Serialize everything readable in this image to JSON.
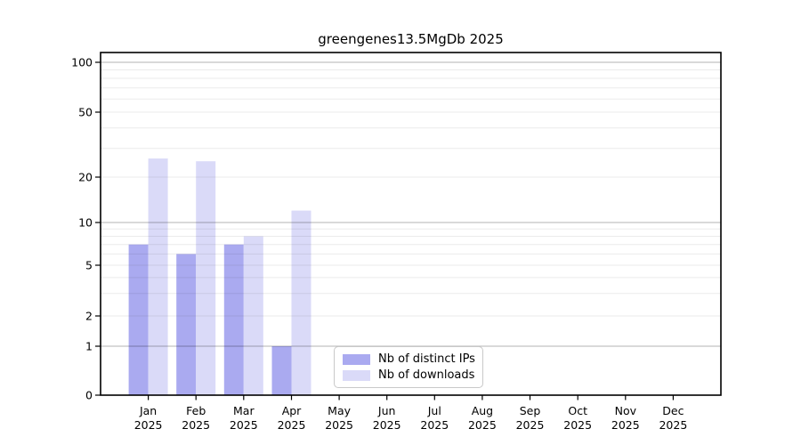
{
  "chart_data": {
    "type": "bar",
    "title": "greengenes13.5MgDb 2025",
    "categories": [
      "Jan",
      "Feb",
      "Mar",
      "Apr",
      "May",
      "Jun",
      "Jul",
      "Aug",
      "Sep",
      "Oct",
      "Nov",
      "Dec"
    ],
    "category_year": "2025",
    "series": [
      {
        "name": "Nb of distinct IPs",
        "color": "#aaaaf0",
        "values": [
          7,
          6,
          7,
          1,
          0,
          0,
          0,
          0,
          0,
          0,
          0,
          0
        ]
      },
      {
        "name": "Nb of downloads",
        "color": "#dadaf8",
        "values": [
          26,
          25,
          8,
          12,
          0,
          0,
          0,
          0,
          0,
          0,
          0,
          0
        ]
      }
    ],
    "y_ticks": [
      0,
      1,
      2,
      5,
      10,
      20,
      50,
      100
    ],
    "ylim": [
      0,
      100
    ],
    "yscale": "log-like with zero baseline",
    "grid": "on",
    "legend_position": "inside bottom-center",
    "colors": {
      "grid_major": "#b3b3b3",
      "grid_minor": "#ebebeb",
      "axis": "#000000",
      "text": "#000000",
      "background": "#ffffff"
    }
  },
  "legend": {
    "items": [
      {
        "label": "Nb of distinct IPs"
      },
      {
        "label": "Nb of downloads"
      }
    ]
  }
}
